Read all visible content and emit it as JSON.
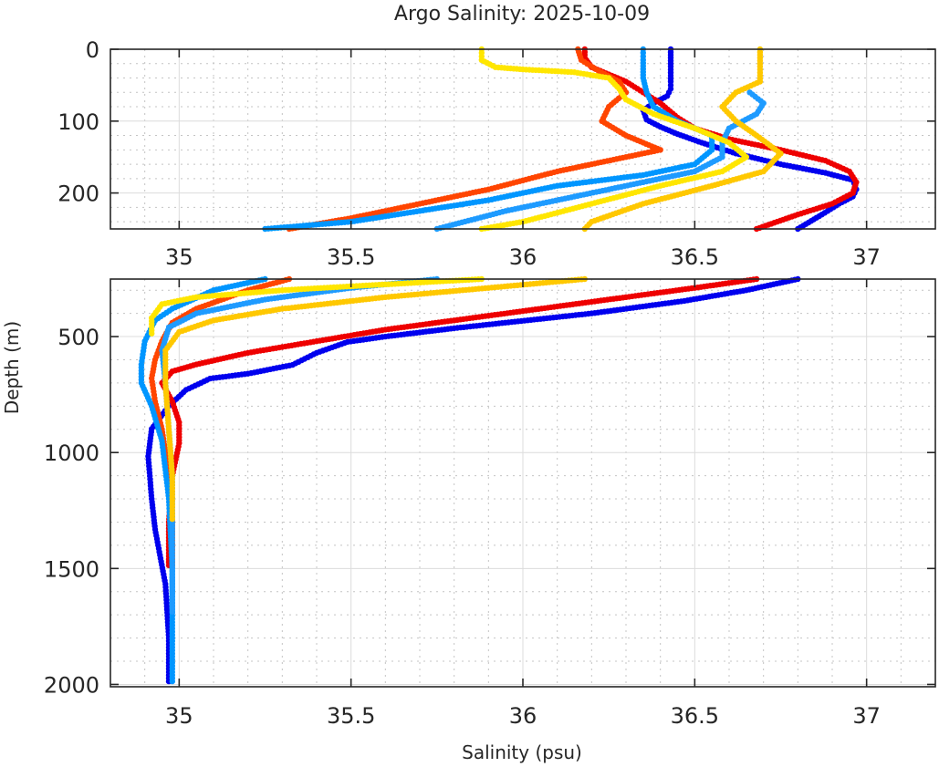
{
  "chart_data": {
    "type": "scatter",
    "title": "Argo Salinity: 2025-10-09",
    "xlabel": "Salinity (psu)",
    "ylabel": "Depth (m)",
    "grid": true,
    "minor_grid": true,
    "legend": "none",
    "panels": [
      {
        "name": "upper",
        "xlim": [
          34.8,
          37.2
        ],
        "ylim": [
          0,
          250
        ],
        "y_reversed": true,
        "xticks": [
          35,
          35.5,
          36,
          36.5,
          37
        ],
        "xtick_labels": [
          "35",
          "35.5",
          "36",
          "36.5",
          "37"
        ],
        "yticks": [
          0,
          100,
          200
        ],
        "ytick_labels": [
          "0",
          "100",
          "200"
        ]
      },
      {
        "name": "lower",
        "xlim": [
          34.8,
          37.2
        ],
        "ylim": [
          252,
          2010
        ],
        "y_reversed": true,
        "xticks": [
          35,
          35.5,
          36,
          36.5,
          37
        ],
        "xtick_labels": [
          "35",
          "35.5",
          "36",
          "36.5",
          "37"
        ],
        "yticks": [
          500,
          1000,
          1500,
          2000
        ],
        "ytick_labels": [
          "500",
          "1000",
          "1500",
          "2000"
        ]
      }
    ],
    "series": [
      {
        "name": "profile-blue",
        "color": "#0000ee",
        "points": [
          [
            36.43,
            0
          ],
          [
            36.43,
            20
          ],
          [
            36.43,
            45
          ],
          [
            36.43,
            55
          ],
          [
            36.42,
            65
          ],
          [
            36.38,
            75
          ],
          [
            36.35,
            85
          ],
          [
            36.36,
            98
          ],
          [
            36.4,
            108
          ],
          [
            36.45,
            118
          ],
          [
            36.52,
            130
          ],
          [
            36.62,
            145
          ],
          [
            36.75,
            160
          ],
          [
            36.88,
            172
          ],
          [
            36.96,
            182
          ],
          [
            36.97,
            195
          ],
          [
            36.96,
            205
          ],
          [
            36.92,
            215
          ],
          [
            36.87,
            230
          ],
          [
            36.8,
            250
          ],
          [
            36.8,
            252
          ],
          [
            36.65,
            300
          ],
          [
            36.47,
            346
          ],
          [
            36.2,
            400
          ],
          [
            35.8,
            464
          ],
          [
            35.6,
            500
          ],
          [
            35.49,
            523
          ],
          [
            35.4,
            570
          ],
          [
            35.33,
            622
          ],
          [
            35.2,
            660
          ],
          [
            35.09,
            681
          ],
          [
            35.02,
            730
          ],
          [
            34.97,
            799
          ],
          [
            34.92,
            898
          ],
          [
            34.91,
            1016
          ],
          [
            34.92,
            1200
          ],
          [
            34.93,
            1331
          ],
          [
            34.96,
            1567
          ],
          [
            34.97,
            1800
          ],
          [
            34.97,
            2000
          ]
        ]
      },
      {
        "name": "profile-red",
        "color": "#ee0000",
        "points": [
          [
            36.18,
            0
          ],
          [
            36.18,
            12
          ],
          [
            36.2,
            25
          ],
          [
            36.3,
            45
          ],
          [
            36.35,
            60
          ],
          [
            36.4,
            75
          ],
          [
            36.45,
            95
          ],
          [
            36.5,
            110
          ],
          [
            36.6,
            125
          ],
          [
            36.75,
            140
          ],
          [
            36.88,
            155
          ],
          [
            36.95,
            170
          ],
          [
            36.97,
            185
          ],
          [
            36.96,
            200
          ],
          [
            36.9,
            215
          ],
          [
            36.8,
            230
          ],
          [
            36.68,
            250
          ],
          [
            36.68,
            252
          ],
          [
            36.5,
            290
          ],
          [
            36.2,
            350
          ],
          [
            35.9,
            410
          ],
          [
            35.6,
            470
          ],
          [
            35.4,
            520
          ],
          [
            35.2,
            570
          ],
          [
            35.05,
            620
          ],
          [
            34.98,
            650
          ],
          [
            34.95,
            700
          ],
          [
            34.98,
            780
          ],
          [
            35.0,
            870
          ],
          [
            35.0,
            960
          ],
          [
            34.98,
            1100
          ],
          [
            34.97,
            1300
          ],
          [
            34.97,
            1500
          ]
        ]
      },
      {
        "name": "profile-orangered",
        "color": "#ff4500",
        "points": [
          [
            36.16,
            0
          ],
          [
            36.17,
            15
          ],
          [
            36.22,
            30
          ],
          [
            36.28,
            45
          ],
          [
            36.3,
            60
          ],
          [
            36.25,
            80
          ],
          [
            36.23,
            100
          ],
          [
            36.3,
            120
          ],
          [
            36.4,
            140
          ],
          [
            36.3,
            150
          ],
          [
            36.1,
            170
          ],
          [
            35.9,
            195
          ],
          [
            35.7,
            215
          ],
          [
            35.5,
            235
          ],
          [
            35.32,
            250
          ],
          [
            35.32,
            252
          ],
          [
            35.2,
            300
          ],
          [
            35.05,
            380
          ],
          [
            34.98,
            440
          ],
          [
            34.95,
            520
          ],
          [
            34.93,
            600
          ],
          [
            34.92,
            680
          ],
          [
            34.93,
            780
          ],
          [
            34.95,
            900
          ],
          [
            34.97,
            1100
          ],
          [
            34.98,
            1300
          ],
          [
            34.98,
            1500
          ]
        ]
      },
      {
        "name": "profile-lightblue-a",
        "color": "#0096ff",
        "points": [
          [
            36.35,
            0
          ],
          [
            36.35,
            15
          ],
          [
            36.35,
            40
          ],
          [
            36.36,
            60
          ],
          [
            36.38,
            80
          ],
          [
            36.45,
            100
          ],
          [
            36.55,
            120
          ],
          [
            36.55,
            140
          ],
          [
            36.5,
            160
          ],
          [
            36.35,
            175
          ],
          [
            36.1,
            190
          ],
          [
            35.9,
            210
          ],
          [
            35.7,
            225
          ],
          [
            35.5,
            240
          ],
          [
            35.25,
            250
          ],
          [
            35.25,
            252
          ],
          [
            35.1,
            300
          ],
          [
            34.98,
            380
          ],
          [
            34.93,
            430
          ],
          [
            34.9,
            520
          ],
          [
            34.89,
            620
          ],
          [
            34.89,
            700
          ],
          [
            34.92,
            800
          ],
          [
            34.95,
            950
          ],
          [
            34.97,
            1200
          ],
          [
            34.98,
            1500
          ],
          [
            34.98,
            1800
          ],
          [
            34.98,
            2000
          ]
        ]
      },
      {
        "name": "profile-lightblue-b",
        "color": "#1e9bff",
        "points": [
          [
            36.66,
            60
          ],
          [
            36.7,
            75
          ],
          [
            36.68,
            90
          ],
          [
            36.6,
            110
          ],
          [
            36.58,
            130
          ],
          [
            36.58,
            150
          ],
          [
            36.5,
            170
          ],
          [
            36.35,
            185
          ],
          [
            36.15,
            205
          ],
          [
            35.95,
            225
          ],
          [
            35.75,
            250
          ],
          [
            35.75,
            252
          ],
          [
            35.5,
            290
          ],
          [
            35.25,
            340
          ],
          [
            35.05,
            400
          ],
          [
            34.97,
            460
          ],
          [
            34.95,
            560
          ],
          [
            34.96,
            700
          ],
          [
            34.97,
            900
          ],
          [
            34.98,
            1100
          ],
          [
            34.98,
            1400
          ],
          [
            34.98,
            1700
          ]
        ]
      },
      {
        "name": "profile-yellow",
        "color": "#ffe600",
        "points": [
          [
            35.88,
            0
          ],
          [
            35.88,
            15
          ],
          [
            35.92,
            25
          ],
          [
            36.0,
            28
          ],
          [
            36.15,
            32
          ],
          [
            36.25,
            40
          ],
          [
            36.28,
            55
          ],
          [
            36.3,
            70
          ],
          [
            36.38,
            90
          ],
          [
            36.5,
            110
          ],
          [
            36.6,
            130
          ],
          [
            36.65,
            150
          ],
          [
            36.58,
            170
          ],
          [
            36.4,
            190
          ],
          [
            36.2,
            215
          ],
          [
            36.0,
            240
          ],
          [
            35.88,
            250
          ],
          [
            35.88,
            252
          ],
          [
            35.6,
            275
          ],
          [
            35.3,
            300
          ],
          [
            35.05,
            330
          ],
          [
            34.95,
            360
          ],
          [
            34.92,
            420
          ],
          [
            34.92,
            500
          ]
        ]
      },
      {
        "name": "profile-gold",
        "color": "#ffc800",
        "points": [
          [
            36.69,
            0
          ],
          [
            36.69,
            20
          ],
          [
            36.69,
            45
          ],
          [
            36.62,
            60
          ],
          [
            36.58,
            80
          ],
          [
            36.62,
            100
          ],
          [
            36.68,
            120
          ],
          [
            36.75,
            145
          ],
          [
            36.7,
            170
          ],
          [
            36.55,
            190
          ],
          [
            36.35,
            215
          ],
          [
            36.2,
            240
          ],
          [
            36.18,
            250
          ],
          [
            36.18,
            252
          ],
          [
            35.9,
            290
          ],
          [
            35.6,
            330
          ],
          [
            35.3,
            380
          ],
          [
            35.1,
            430
          ],
          [
            35.0,
            480
          ],
          [
            34.96,
            560
          ],
          [
            34.96,
            700
          ],
          [
            34.97,
            900
          ],
          [
            34.98,
            1100
          ],
          [
            34.98,
            1300
          ]
        ]
      }
    ]
  }
}
